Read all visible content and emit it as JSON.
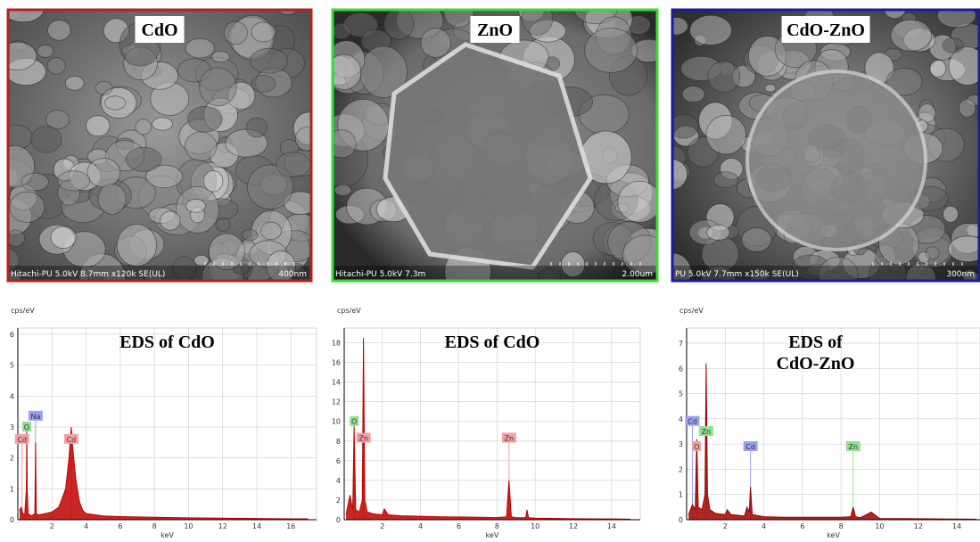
{
  "sem_panels": [
    {
      "label": "CdO",
      "info": "Hitachi-PU 5.0kV 8.7mm x120k SE(UL)",
      "scale": "400nm",
      "border": "#b22222"
    },
    {
      "label": "ZnO",
      "info": "Hitachi-PU 5.0kV 7.3m",
      "scale": "2.00um",
      "border": "#33dd33"
    },
    {
      "label": "CdO-ZnO",
      "info": "PU 5.0kV 7.7mm x150k SE(UL)",
      "scale": "300nm",
      "border": "#1a1aa8"
    }
  ],
  "chart_data": [
    {
      "type": "area",
      "title": [
        "EDS of CdO"
      ],
      "y_label": "cps/eV",
      "x_label": "keV",
      "color": "#c00000",
      "grid": true,
      "x": [
        0.1,
        0.2,
        0.3,
        0.4,
        0.5,
        0.52,
        0.55,
        0.6,
        0.8,
        1.0,
        1.04,
        1.08,
        1.2,
        1.6,
        2.0,
        2.4,
        2.8,
        3.0,
        3.13,
        3.2,
        3.4,
        3.6,
        3.8,
        4.0,
        5,
        6,
        8,
        10,
        12,
        14,
        16,
        17
      ],
      "values": [
        0.3,
        0.4,
        0.2,
        0.15,
        1.0,
        3.0,
        1.0,
        0.2,
        0.12,
        0.2,
        2.5,
        0.2,
        0.15,
        0.2,
        0.25,
        0.4,
        1.0,
        2.0,
        3.0,
        2.4,
        1.3,
        0.6,
        0.3,
        0.2,
        0.12,
        0.1,
        0.08,
        0.06,
        0.05,
        0.04,
        0.03,
        0.03
      ],
      "xlim": [
        0,
        17.5
      ],
      "xticks": [
        2,
        4,
        6,
        8,
        10,
        12,
        14,
        16
      ],
      "ylim": [
        0,
        6.2
      ],
      "yticks": [
        0,
        1,
        2,
        3,
        4,
        5,
        6
      ],
      "peaks": [
        {
          "label": "Cd",
          "x": 0.25,
          "y": 2.6,
          "color": "#f4a0a0"
        },
        {
          "label": "O",
          "x": 0.52,
          "y": 3.0,
          "color": "#90e090"
        },
        {
          "label": "Na",
          "x": 1.04,
          "y": 3.35,
          "color": "#9aa0f0"
        },
        {
          "label": "Cd",
          "x": 3.13,
          "y": 2.6,
          "color": "#f4a0a0"
        }
      ]
    },
    {
      "type": "area",
      "title": [
        "EDS of CdO"
      ],
      "y_label": "cps/eV",
      "x_label": "keV",
      "color": "#c00000",
      "grid": true,
      "x": [
        0.1,
        0.3,
        0.45,
        0.52,
        0.6,
        0.8,
        0.95,
        1.01,
        1.08,
        1.2,
        1.5,
        2.0,
        2.1,
        2.3,
        3,
        4,
        5,
        6,
        7,
        8,
        8.5,
        8.63,
        8.75,
        9,
        9.5,
        9.57,
        9.65,
        10,
        12,
        14,
        15
      ],
      "values": [
        0.5,
        2.5,
        1.0,
        9.5,
        1.0,
        0.8,
        2.0,
        18.5,
        2.0,
        0.8,
        0.6,
        0.5,
        1.1,
        0.5,
        0.4,
        0.35,
        0.3,
        0.28,
        0.25,
        0.22,
        0.3,
        4.0,
        0.3,
        0.2,
        0.2,
        1.0,
        0.2,
        0.15,
        0.1,
        0.08,
        0.05
      ],
      "xlim": [
        0,
        15.5
      ],
      "xticks": [
        2,
        4,
        6,
        8,
        10,
        12,
        14
      ],
      "ylim": [
        0,
        19.5
      ],
      "yticks": [
        0,
        2,
        4,
        6,
        8,
        10,
        12,
        14,
        16,
        18
      ],
      "peaks": [
        {
          "label": "O",
          "x": 0.52,
          "y": 10,
          "color": "#90e090"
        },
        {
          "label": "Zn",
          "x": 1.01,
          "y": 8.3,
          "color": "#f4a0a0"
        },
        {
          "label": "Zn",
          "x": 8.63,
          "y": 8.3,
          "color": "#f4a0a0"
        }
      ]
    },
    {
      "type": "area",
      "title": [
        "EDS of",
        "CdO-ZnO"
      ],
      "y_label": "cps/eV",
      "x_label": "keV",
      "color": "#a00000",
      "grid": true,
      "x": [
        0.1,
        0.3,
        0.45,
        0.52,
        0.6,
        0.8,
        0.95,
        1.01,
        1.08,
        1.2,
        1.5,
        2.0,
        2.1,
        2.3,
        3.0,
        3.13,
        3.25,
        3.31,
        3.4,
        4,
        5,
        6,
        7,
        8,
        8.5,
        8.63,
        8.75,
        9,
        9.57,
        10,
        12,
        14,
        15
      ],
      "values": [
        0.2,
        0.6,
        0.4,
        3.2,
        0.5,
        0.4,
        1.0,
        6.2,
        1.0,
        0.4,
        0.25,
        0.2,
        0.4,
        0.2,
        0.15,
        0.5,
        0.3,
        1.3,
        0.2,
        0.12,
        0.1,
        0.1,
        0.1,
        0.1,
        0.12,
        0.5,
        0.12,
        0.08,
        0.3,
        0.05,
        0.04,
        0.03,
        0.02
      ],
      "xlim": [
        0,
        15.2
      ],
      "xticks": [
        2,
        4,
        6,
        8,
        10,
        12,
        14
      ],
      "ylim": [
        0,
        7.6
      ],
      "yticks": [
        0,
        1,
        2,
        3,
        4,
        5,
        6,
        7
      ],
      "peaks": [
        {
          "label": "Cd",
          "x": 0.3,
          "y": 3.9,
          "color": "#9aa0f0"
        },
        {
          "label": "O",
          "x": 0.52,
          "y": 2.9,
          "color": "#f4a0a0"
        },
        {
          "label": "Zn",
          "x": 1.01,
          "y": 3.5,
          "color": "#90e090"
        },
        {
          "label": "Cd",
          "x": 3.31,
          "y": 2.9,
          "color": "#9aa0f0"
        },
        {
          "label": "Zn",
          "x": 8.63,
          "y": 2.9,
          "color": "#90e090"
        }
      ]
    }
  ]
}
